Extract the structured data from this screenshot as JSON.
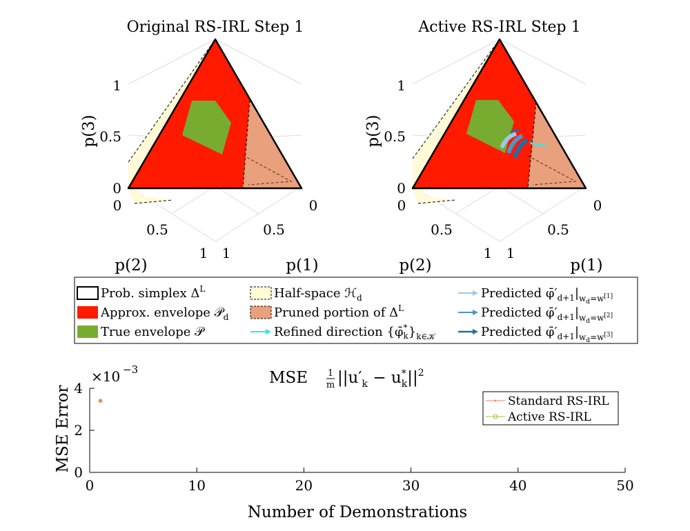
{
  "ternary_panels": [
    {
      "title": "Original RS-IRL Step 1",
      "ticks_p3": [
        "1",
        "0.5",
        "0"
      ],
      "ticks_p2": [
        "0",
        "0.5",
        "1"
      ],
      "ticks_p1": [
        "0",
        "0.5",
        "1"
      ],
      "label_p1": "p(1)",
      "label_p2": "p(2)",
      "label_p3": "p(3)",
      "refined_directions": false
    },
    {
      "title": "Active RS-IRL Step 1",
      "ticks_p3": [
        "1",
        "0.5",
        "0"
      ],
      "ticks_p2": [
        "0",
        "0.5",
        "1"
      ],
      "ticks_p1": [
        "0",
        "0.5",
        "1"
      ],
      "label_p1": "p(1)",
      "label_p2": "p(2)",
      "label_p3": "p(3)",
      "refined_directions": true
    }
  ],
  "legend": {
    "simplex": "Prob. simplex Δ",
    "simplex_sup": "L",
    "approx": "Approx. envelope 𝒫",
    "approx_sub": "d",
    "true_env": "True envelope 𝒫",
    "halfspace": "Half-space ℋ",
    "halfspace_sub": "d",
    "pruned": "Pruned portion of Δ",
    "pruned_sup": "L",
    "refined": "Refined direction {φ̄",
    "refined_sup": "*",
    "refined_sub": "k",
    "refined_tail": "}",
    "refined_tail_sub": "k∈𝒦",
    "pred_main": "Predicted φ̄′",
    "pred_sub": "d+1",
    "pred_bar": "|",
    "pred_w": [
      "w",
      "d",
      "=w",
      "[1]",
      "[2]",
      "[3]"
    ]
  },
  "colors": {
    "approx": "#ff1a00",
    "true_env": "#77ac30",
    "halfspace": "#fffbd6",
    "pruned": "#e9a07c",
    "refined": "#2ee6f0",
    "pred1": "#9ec8ea",
    "pred2": "#4a96cc",
    "pred3": "#1f6ea8",
    "standard": "#e8836e",
    "active": "#b0b844"
  },
  "mse_title": "MSE",
  "mse_title_frac_num": "1",
  "mse_title_frac_den": "m",
  "mse_title_expr": "||u′",
  "mse_title_k": "k",
  "mse_title_minus": " − u",
  "mse_title_star": "*",
  "mse_title_end": "||",
  "mse_title_sq": "2",
  "chart_data": {
    "type": "line",
    "title": "MSE 1/m ||u′_k − u*_k||²",
    "xlabel": "Number of Demonstrations",
    "ylabel": "MSE Error",
    "y_exponent_label": "×10",
    "y_exponent": "−3",
    "xlim": [
      0,
      50
    ],
    "ylim": [
      0,
      4
    ],
    "x_ticks": [
      0,
      10,
      20,
      30,
      40,
      50
    ],
    "y_ticks": [
      0,
      2,
      4
    ],
    "legend_position": "top-right",
    "series": [
      {
        "name": "Standard RS-IRL",
        "x": [
          1
        ],
        "y": [
          3.4
        ],
        "marker": "dot"
      },
      {
        "name": "Active RS-IRL",
        "x": [
          1
        ],
        "y": [
          3.4
        ],
        "marker": "circle"
      }
    ]
  }
}
